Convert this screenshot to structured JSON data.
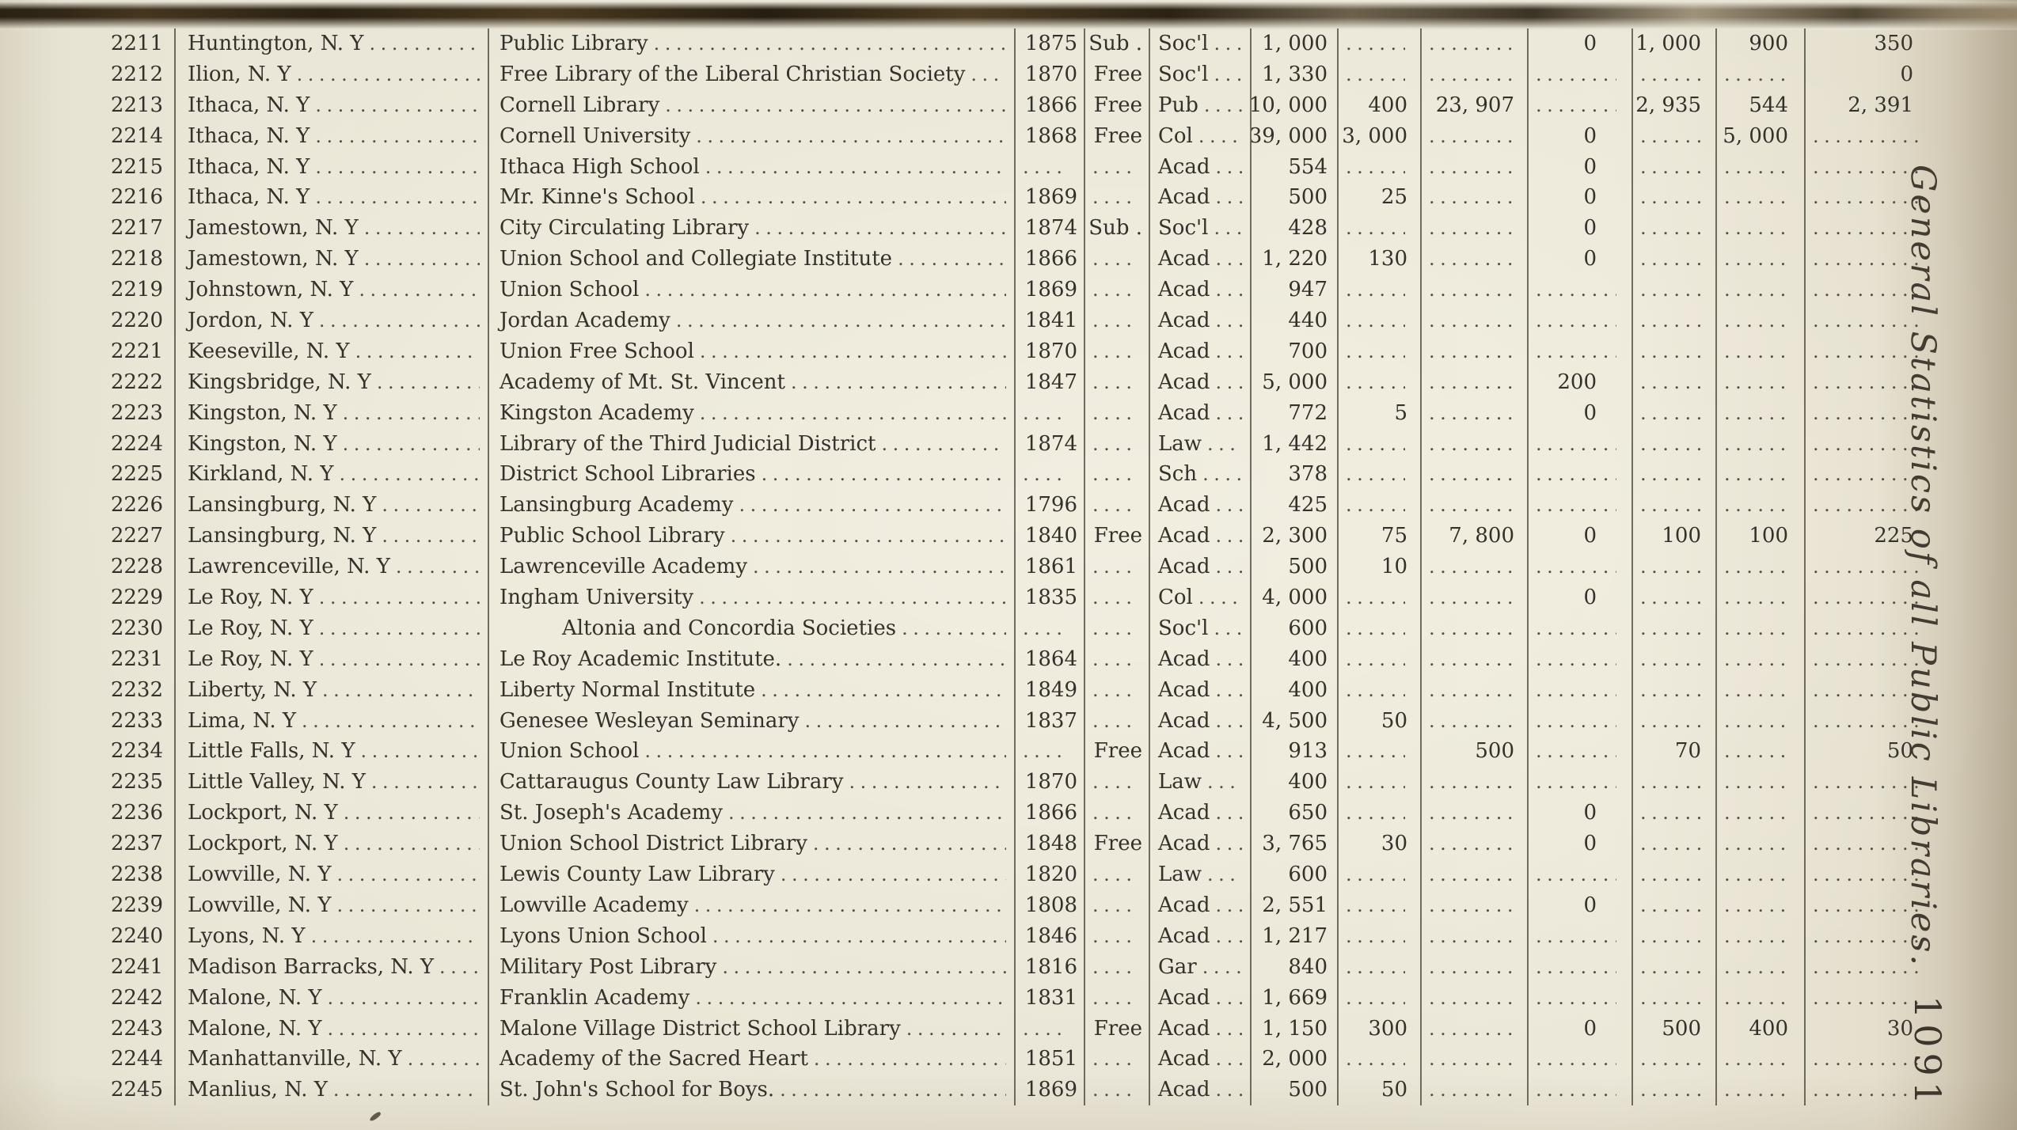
{
  "page": {
    "side_title": "General Statistics of all Public Libraries.",
    "page_number": "1091"
  },
  "table": {
    "rows": [
      {
        "no": "2211",
        "location": "Huntington, N. Y",
        "library": "Public Library",
        "year": "1875",
        "terms": "Sub .",
        "class": "Soc'l",
        "c7": "1, 000",
        "c8": "",
        "c9": "",
        "c10": "0",
        "c11": "1, 000",
        "c12": "900",
        "c13": "350"
      },
      {
        "no": "2212",
        "location": "Ilion, N. Y",
        "library": "Free Library of the Liberal Christian Society",
        "year": "1870",
        "terms": "Free",
        "class": "Soc'l",
        "c7": "1, 330",
        "c8": "",
        "c9": "",
        "c10": "",
        "c11": "",
        "c12": "",
        "c13": "0"
      },
      {
        "no": "2213",
        "location": "Ithaca, N. Y",
        "library": "Cornell Library",
        "year": "1866",
        "terms": "Free",
        "class": "Pub",
        "c7": "10, 000",
        "c8": "400",
        "c9": "23, 907",
        "c10": "",
        "c11": "2, 935",
        "c12": "544",
        "c13": "2, 391"
      },
      {
        "no": "2214",
        "location": "Ithaca, N. Y",
        "library": "Cornell University",
        "year": "1868",
        "terms": "Free",
        "class": "Col",
        "c7": "39, 000",
        "c8": "3, 000",
        "c9": "",
        "c10": "0",
        "c11": "",
        "c12": "5, 000",
        "c13": ""
      },
      {
        "no": "2215",
        "location": "Ithaca, N. Y",
        "library": "Ithaca High School",
        "year": "",
        "terms": "",
        "class": "Acad",
        "c7": "554",
        "c8": "",
        "c9": "",
        "c10": "0",
        "c11": "",
        "c12": "",
        "c13": ""
      },
      {
        "no": "2216",
        "location": "Ithaca, N. Y",
        "library": "Mr. Kinne's School",
        "year": "1869",
        "terms": "",
        "class": "Acad",
        "c7": "500",
        "c8": "25",
        "c9": "",
        "c10": "0",
        "c11": "",
        "c12": "",
        "c13": ""
      },
      {
        "no": "2217",
        "location": "Jamestown, N. Y",
        "library": "City Circulating Library",
        "year": "1874",
        "terms": "Sub .",
        "class": "Soc'l",
        "c7": "428",
        "c8": "",
        "c9": "",
        "c10": "0",
        "c11": "",
        "c12": "",
        "c13": ""
      },
      {
        "no": "2218",
        "location": "Jamestown, N. Y",
        "library": "Union School and Collegiate Institute",
        "year": "1866",
        "terms": "",
        "class": "Acad",
        "c7": "1, 220",
        "c8": "130",
        "c9": "",
        "c10": "0",
        "c11": "",
        "c12": "",
        "c13": ""
      },
      {
        "no": "2219",
        "location": "Johnstown, N. Y",
        "library": "Union School",
        "year": "1869",
        "terms": "",
        "class": "Acad",
        "c7": "947",
        "c8": "",
        "c9": "",
        "c10": "",
        "c11": "",
        "c12": "",
        "c13": ""
      },
      {
        "no": "2220",
        "location": "Jordon, N. Y",
        "library": "Jordan Academy",
        "year": "1841",
        "terms": "",
        "class": "Acad",
        "c7": "440",
        "c8": "",
        "c9": "",
        "c10": "",
        "c11": "",
        "c12": "",
        "c13": ""
      },
      {
        "no": "2221",
        "location": "Keeseville, N. Y",
        "library": "Union Free School",
        "year": "1870",
        "terms": "",
        "class": "Acad",
        "c7": "700",
        "c8": "",
        "c9": "",
        "c10": "",
        "c11": "",
        "c12": "",
        "c13": ""
      },
      {
        "no": "2222",
        "location": "Kingsbridge, N. Y",
        "library": "Academy of Mt. St. Vincent",
        "year": "1847",
        "terms": "",
        "class": "Acad",
        "c7": "5, 000",
        "c8": "",
        "c9": "",
        "c10": "200",
        "c11": "",
        "c12": "",
        "c13": ""
      },
      {
        "no": "2223",
        "location": "Kingston, N. Y",
        "library": "Kingston Academy",
        "year": "",
        "terms": "",
        "class": "Acad",
        "c7": "772",
        "c8": "5",
        "c9": "",
        "c10": "0",
        "c11": "",
        "c12": "",
        "c13": ""
      },
      {
        "no": "2224",
        "location": "Kingston, N. Y",
        "library": "Library of the Third Judicial District",
        "year": "1874",
        "terms": "",
        "class": "Law",
        "c7": "1, 442",
        "c8": "",
        "c9": "",
        "c10": "",
        "c11": "",
        "c12": "",
        "c13": ""
      },
      {
        "no": "2225",
        "location": "Kirkland, N. Y",
        "library": "District School Libraries",
        "year": "",
        "terms": "",
        "class": "Sch",
        "c7": "378",
        "c8": "",
        "c9": "",
        "c10": "",
        "c11": "",
        "c12": "",
        "c13": ""
      },
      {
        "no": "2226",
        "location": "Lansingburg, N. Y",
        "library": "Lansingburg Academy",
        "year": "1796",
        "terms": "",
        "class": "Acad",
        "c7": "425",
        "c8": "",
        "c9": "",
        "c10": "",
        "c11": "",
        "c12": "",
        "c13": ""
      },
      {
        "no": "2227",
        "location": "Lansingburg, N. Y",
        "library": "Public School Library",
        "year": "1840",
        "terms": "Free",
        "class": "Acad",
        "c7": "2, 300",
        "c8": "75",
        "c9": "7, 800",
        "c10": "0",
        "c11": "100",
        "c12": "100",
        "c13": "225"
      },
      {
        "no": "2228",
        "location": "Lawrenceville, N. Y",
        "library": "Lawrenceville Academy",
        "year": "1861",
        "terms": "",
        "class": "Acad",
        "c7": "500",
        "c8": "10",
        "c9": "",
        "c10": "",
        "c11": "",
        "c12": "",
        "c13": ""
      },
      {
        "no": "2229",
        "location": "Le Roy, N. Y",
        "library": "Ingham University",
        "year": "1835",
        "terms": "",
        "class": "Col",
        "c7": "4, 000",
        "c8": "",
        "c9": "",
        "c10": "0",
        "c11": "",
        "c12": "",
        "c13": ""
      },
      {
        "no": "2230",
        "location": "Le Roy, N. Y",
        "library": "Altonia and Concordia Societies",
        "indent": true,
        "year": "",
        "terms": "",
        "class": "Soc'l",
        "c7": "600",
        "c8": "",
        "c9": "",
        "c10": "",
        "c11": "",
        "c12": "",
        "c13": ""
      },
      {
        "no": "2231",
        "location": "Le Roy, N. Y",
        "library": "Le Roy Academic Institute.",
        "year": "1864",
        "terms": "",
        "class": "Acad",
        "c7": "400",
        "c8": "",
        "c9": "",
        "c10": "",
        "c11": "",
        "c12": "",
        "c13": ""
      },
      {
        "no": "2232",
        "location": "Liberty, N. Y",
        "library": "Liberty Normal Institute",
        "year": "1849",
        "terms": "",
        "class": "Acad",
        "c7": "400",
        "c8": "",
        "c9": "",
        "c10": "",
        "c11": "",
        "c12": "",
        "c13": ""
      },
      {
        "no": "2233",
        "location": "Lima, N. Y",
        "library": "Genesee Wesleyan Seminary",
        "year": "1837",
        "terms": "",
        "class": "Acad",
        "c7": "4, 500",
        "c8": "50",
        "c9": "",
        "c10": "",
        "c11": "",
        "c12": "",
        "c13": ""
      },
      {
        "no": "2234",
        "location": "Little Falls, N. Y",
        "library": "Union School",
        "year": "",
        "terms": "Free",
        "class": "Acad",
        "c7": "913",
        "c8": "",
        "c9": "500",
        "c10": "",
        "c11": "70",
        "c12": "",
        "c13": "50"
      },
      {
        "no": "2235",
        "location": "Little Valley, N. Y",
        "library": "Cattaraugus County Law Library",
        "year": "1870",
        "terms": "",
        "class": "Law",
        "c7": "400",
        "c8": "",
        "c9": "",
        "c10": "",
        "c11": "",
        "c12": "",
        "c13": ""
      },
      {
        "no": "2236",
        "location": "Lockport, N. Y",
        "library": "St. Joseph's Academy",
        "year": "1866",
        "terms": "",
        "class": "Acad",
        "c7": "650",
        "c8": "",
        "c9": "",
        "c10": "0",
        "c11": "",
        "c12": "",
        "c13": ""
      },
      {
        "no": "2237",
        "location": "Lockport, N. Y",
        "library": "Union School District Library",
        "year": "1848",
        "terms": "Free",
        "class": "Acad",
        "c7": "3, 765",
        "c8": "30",
        "c9": "",
        "c10": "0",
        "c11": "",
        "c12": "",
        "c13": ""
      },
      {
        "no": "2238",
        "location": "Lowville, N. Y",
        "library": "Lewis County Law Library",
        "year": "1820",
        "terms": "",
        "class": "Law",
        "c7": "600",
        "c8": "",
        "c9": "",
        "c10": "",
        "c11": "",
        "c12": "",
        "c13": ""
      },
      {
        "no": "2239",
        "location": "Lowville, N. Y",
        "library": "Lowville Academy",
        "year": "1808",
        "terms": "",
        "class": "Acad",
        "c7": "2, 551",
        "c8": "",
        "c9": "",
        "c10": "0",
        "c11": "",
        "c12": "",
        "c13": ""
      },
      {
        "no": "2240",
        "location": "Lyons, N. Y",
        "library": "Lyons Union School",
        "year": "1846",
        "terms": "",
        "class": "Acad",
        "c7": "1, 217",
        "c8": "",
        "c9": "",
        "c10": "",
        "c11": "",
        "c12": "",
        "c13": ""
      },
      {
        "no": "2241",
        "location": "Madison Barracks, N. Y",
        "library": "Military Post Library",
        "year": "1816",
        "terms": "",
        "class": "Gar",
        "c7": "840",
        "c8": "",
        "c9": "",
        "c10": "",
        "c11": "",
        "c12": "",
        "c13": ""
      },
      {
        "no": "2242",
        "location": "Malone, N. Y",
        "library": "Franklin Academy",
        "year": "1831",
        "terms": "",
        "class": "Acad",
        "c7": "1, 669",
        "c8": "",
        "c9": "",
        "c10": "",
        "c11": "",
        "c12": "",
        "c13": ""
      },
      {
        "no": "2243",
        "location": "Malone, N. Y",
        "library": "Malone Village District School Library",
        "year": "",
        "terms": "Free",
        "class": "Acad",
        "c7": "1, 150",
        "c8": "300",
        "c9": "",
        "c10": "0",
        "c11": "500",
        "c12": "400",
        "c13": "30"
      },
      {
        "no": "2244",
        "location": "Manhattanville, N. Y",
        "library": "Academy of the Sacred Heart",
        "year": "1851",
        "terms": "",
        "class": "Acad",
        "c7": "2, 000",
        "c8": "",
        "c9": "",
        "c10": "",
        "c11": "",
        "c12": "",
        "c13": ""
      },
      {
        "no": "2245",
        "location": "Manlius, N. Y",
        "library": "St. John's School for Boys.",
        "year": "1869",
        "terms": "",
        "class": "Acad",
        "c7": "500",
        "c8": "50",
        "c9": "",
        "c10": "",
        "c11": "",
        "c12": "",
        "c13": ""
      }
    ]
  }
}
